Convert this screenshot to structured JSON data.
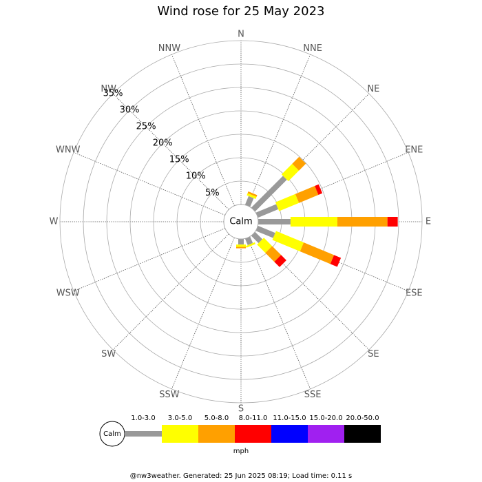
{
  "chart_data": {
    "type": "wind_rose",
    "title": "Wind rose for 25 May 2023",
    "directions": [
      "N",
      "NNE",
      "NE",
      "ENE",
      "E",
      "ESE",
      "SE",
      "SSE",
      "S",
      "SSW",
      "SW",
      "WSW",
      "W",
      "WNW",
      "NW",
      "NNW"
    ],
    "calm_label": "Calm",
    "ylim": [
      0,
      35
    ],
    "yticks": [
      {
        "value": 5,
        "label": "5%"
      },
      {
        "value": 10,
        "label": "10%"
      },
      {
        "value": 15,
        "label": "15%"
      },
      {
        "value": 20,
        "label": "20%"
      },
      {
        "value": 25,
        "label": "25%"
      },
      {
        "value": 30,
        "label": "30%"
      },
      {
        "value": 35,
        "label": "35%"
      }
    ],
    "series": [
      {
        "name": "1.0-3.0",
        "color": "#999999",
        "values": [
          0,
          2.0,
          9.6,
          4.7,
          6.9,
          4.0,
          2.2,
          1.5,
          1.2,
          0,
          0,
          0,
          0,
          0,
          0,
          0
        ]
      },
      {
        "name": "3.0-5.0",
        "color": "#ffff00",
        "values": [
          0,
          0.5,
          3.2,
          4.6,
          10.0,
          6.4,
          2.5,
          0.4,
          0.5,
          0,
          0,
          0,
          0,
          0,
          0,
          0
        ]
      },
      {
        "name": "5.0-8.0",
        "color": "#ffa000",
        "values": [
          0,
          0.4,
          2.1,
          4.5,
          10.7,
          7.0,
          2.7,
          0,
          0.3,
          0,
          0,
          0,
          0,
          0,
          0,
          0
        ]
      },
      {
        "name": "8.0-11.0",
        "color": "#ff0000",
        "values": [
          0,
          0,
          0,
          0.9,
          2.2,
          1.6,
          1.6,
          0,
          0,
          0,
          0,
          0,
          0,
          0,
          0,
          0
        ]
      },
      {
        "name": "11.0-15.0",
        "color": "#0000ff",
        "values": [
          0,
          0,
          0,
          0,
          0,
          0,
          0,
          0,
          0,
          0,
          0,
          0,
          0,
          0,
          0,
          0
        ]
      },
      {
        "name": "15.0-20.0",
        "color": "#a020f0",
        "values": [
          0,
          0,
          0,
          0,
          0,
          0,
          0,
          0,
          0,
          0,
          0,
          0,
          0,
          0,
          0,
          0
        ]
      },
      {
        "name": "20.0-50.0",
        "color": "#000000",
        "values": [
          0,
          0,
          0,
          0,
          0,
          0,
          0,
          0,
          0,
          0,
          0,
          0,
          0,
          0,
          0,
          0
        ]
      }
    ],
    "units": "mph",
    "footer": "@nw3weather. Generated: 25 Jun 2025 08:19; Load time: 0.11 s"
  }
}
